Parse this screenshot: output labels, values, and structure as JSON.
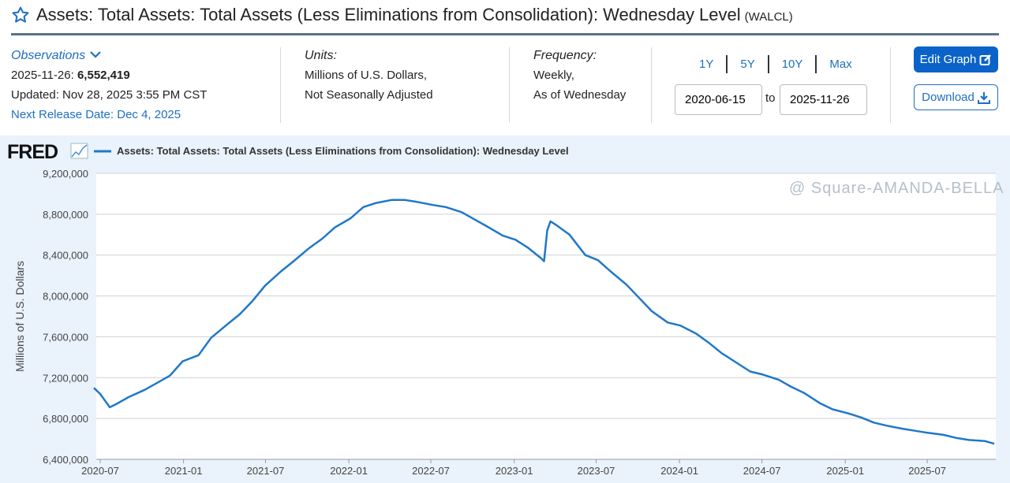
{
  "header": {
    "title": "Assets: Total Assets: Total Assets (Less Eliminations from Consolidation): Wednesday Level",
    "series_id": "(WALCL)",
    "icon": "star-icon"
  },
  "observations": {
    "label": "Observations",
    "date": "2025-11-26:",
    "value": "6,552,419",
    "updated": "Updated: Nov 28, 2025 3:55 PM CST",
    "next_release": "Next Release Date: Dec 4, 2025"
  },
  "units": {
    "label": "Units:",
    "line1": "Millions of U.S. Dollars,",
    "line2": "Not Seasonally Adjusted"
  },
  "frequency": {
    "label": "Frequency:",
    "line1": "Weekly,",
    "line2": "As of Wednesday"
  },
  "range": {
    "buttons": [
      "1Y",
      "5Y",
      "10Y",
      "Max"
    ],
    "start": "2020-06-15",
    "to": "to",
    "end": "2025-11-26"
  },
  "actions": {
    "edit": "Edit Graph",
    "download": "Download"
  },
  "colors": {
    "accent": "#0b63c9",
    "line": "#1f78c8",
    "chart_bg": "#eaf2fb"
  },
  "watermark": "@ Square-AMANDA-BELLA",
  "chart_data": {
    "type": "line",
    "logo": "FRED",
    "legend": "Assets: Total Assets: Total Assets (Less Eliminations from Consolidation): Wednesday Level",
    "legend_position": "top-left",
    "ylabel": "Millions of U.S. Dollars",
    "ylim": [
      6400000,
      9200000
    ],
    "yticks": [
      "9,200,000",
      "8,800,000",
      "8,400,000",
      "8,000,000",
      "7,600,000",
      "7,200,000",
      "6,800,000",
      "6,400,000"
    ],
    "ytick_values": [
      9200000,
      8800000,
      8400000,
      8000000,
      7600000,
      7200000,
      6800000,
      6400000
    ],
    "xticks": [
      "2020-07",
      "2021-01",
      "2021-07",
      "2022-01",
      "2022-07",
      "2023-01",
      "2023-07",
      "2024-01",
      "2024-07",
      "2025-01",
      "2025-07"
    ],
    "grid": true,
    "series": [
      {
        "x": [
          "2020-06-17",
          "2020-07-01",
          "2020-07-22",
          "2020-08-05",
          "2020-09-02",
          "2020-10-07",
          "2020-11-04",
          "2020-12-02",
          "2020-12-30",
          "2021-02-03",
          "2021-03-03",
          "2021-04-07",
          "2021-05-05",
          "2021-06-02",
          "2021-06-30",
          "2021-08-04",
          "2021-09-01",
          "2021-10-06",
          "2021-11-03",
          "2021-12-01",
          "2022-01-05",
          "2022-02-02",
          "2022-03-02",
          "2022-04-06",
          "2022-05-04",
          "2022-06-01",
          "2022-07-06",
          "2022-08-03",
          "2022-09-07",
          "2022-10-05",
          "2022-11-02",
          "2022-12-07",
          "2023-01-04",
          "2023-02-01",
          "2023-03-01",
          "2023-03-08",
          "2023-03-15",
          "2023-03-22",
          "2023-04-05",
          "2023-05-03",
          "2023-06-07",
          "2023-07-05",
          "2023-08-02",
          "2023-09-06",
          "2023-10-04",
          "2023-11-01",
          "2023-12-06",
          "2024-01-03",
          "2024-02-07",
          "2024-03-06",
          "2024-04-03",
          "2024-05-01",
          "2024-06-05",
          "2024-07-03",
          "2024-08-07",
          "2024-09-04",
          "2024-10-02",
          "2024-11-06",
          "2024-12-04",
          "2025-01-08",
          "2025-02-05",
          "2025-03-05",
          "2025-04-02",
          "2025-05-07",
          "2025-06-04",
          "2025-07-02",
          "2025-08-06",
          "2025-09-03",
          "2025-10-01",
          "2025-11-05",
          "2025-11-26"
        ],
        "values": [
          7100000,
          7040000,
          6910000,
          6940000,
          7010000,
          7080000,
          7150000,
          7220000,
          7360000,
          7420000,
          7590000,
          7720000,
          7820000,
          7950000,
          8100000,
          8240000,
          8340000,
          8470000,
          8560000,
          8670000,
          8760000,
          8870000,
          8910000,
          8940000,
          8940000,
          8920000,
          8890000,
          8870000,
          8820000,
          8750000,
          8680000,
          8590000,
          8550000,
          8470000,
          8370000,
          8340000,
          8640000,
          8730000,
          8690000,
          8600000,
          8400000,
          8350000,
          8240000,
          8110000,
          7980000,
          7850000,
          7740000,
          7710000,
          7630000,
          7540000,
          7440000,
          7360000,
          7260000,
          7230000,
          7180000,
          7110000,
          7050000,
          6950000,
          6890000,
          6850000,
          6810000,
          6760000,
          6730000,
          6700000,
          6680000,
          6660000,
          6640000,
          6610000,
          6590000,
          6580000,
          6552419
        ]
      }
    ]
  }
}
